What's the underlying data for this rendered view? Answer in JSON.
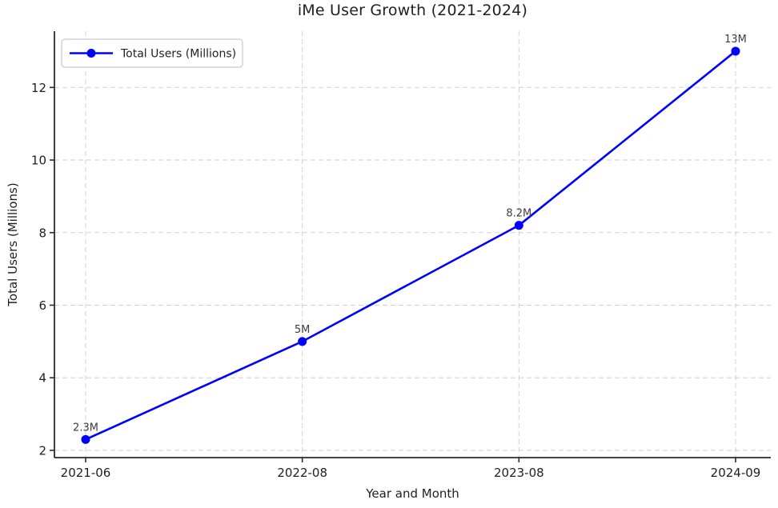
{
  "chart_data": {
    "type": "line",
    "title": "iMe User Growth (2021-2024)",
    "xlabel": "Year and Month",
    "ylabel": "Total Users (Millions)",
    "categories": [
      "2021-06",
      "2022-08",
      "2023-08",
      "2024-09"
    ],
    "series": [
      {
        "name": "Total Users (Millions)",
        "values": [
          2.3,
          5.0,
          8.2,
          13.0
        ],
        "color": "#0000ff",
        "marker": "circle"
      }
    ],
    "point_labels": [
      "2.3M",
      "5M",
      "8.2M",
      "13M"
    ],
    "yticks": [
      2,
      4,
      6,
      8,
      10,
      12
    ],
    "ylim": [
      1.8,
      13.55
    ],
    "grid": {
      "visible": true,
      "linestyle": "dashed"
    },
    "legend": {
      "position": "upper left",
      "entries": [
        "Total Users (Millions)"
      ]
    }
  },
  "colors": {
    "series": "#0000ff",
    "text": "#1f1f1f",
    "annotation": "#3d3d3d",
    "grid": "#d0d0d0",
    "spine": "#2a2a2a",
    "background": "#ffffff",
    "legend_border": "#c9c9c9",
    "legend_bg": "#ffffff"
  }
}
